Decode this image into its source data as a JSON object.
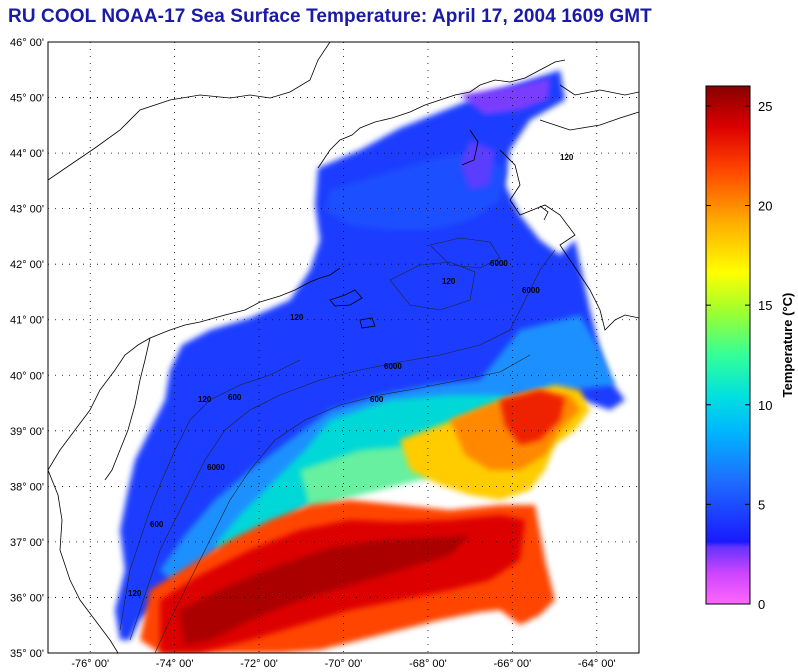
{
  "title": "RU COOL  NOAA-17  Sea Surface Temperature:  April 17, 2004 1609 GMT",
  "map": {
    "lat_labels": [
      "46° 00'",
      "45° 00'",
      "44° 00'",
      "43° 00'",
      "42° 00'",
      "41° 00'",
      "40° 00'",
      "39° 00'",
      "38° 00'",
      "37° 00'",
      "36° 00'",
      "35° 00'"
    ],
    "lon_labels": [
      "-76° 00'",
      "-74° 00'",
      "-72° 00'",
      "-70° 00'",
      "-68° 00'",
      "-66° 00'",
      "-64° 00'"
    ],
    "lat_range": [
      35,
      46
    ],
    "lon_range": [
      -77,
      -63
    ],
    "isobath_labels": [
      "6000",
      "6000",
      "6000",
      "6000",
      "600",
      "600",
      "600",
      "120",
      "120",
      "120",
      "120",
      "120"
    ],
    "grid": "dotted"
  },
  "colorbar": {
    "title": "Temperature (°C)",
    "ticks": [
      "0",
      "5",
      "10",
      "15",
      "20",
      "25"
    ],
    "range": [
      0,
      26
    ],
    "colors": [
      "#ff66ff",
      "#9933ff",
      "#1a1aff",
      "#1e7bff",
      "#00ccff",
      "#33ffcc",
      "#99ff33",
      "#ffff00",
      "#ffaa00",
      "#ff5500",
      "#ee1100",
      "#8b0000"
    ]
  }
}
